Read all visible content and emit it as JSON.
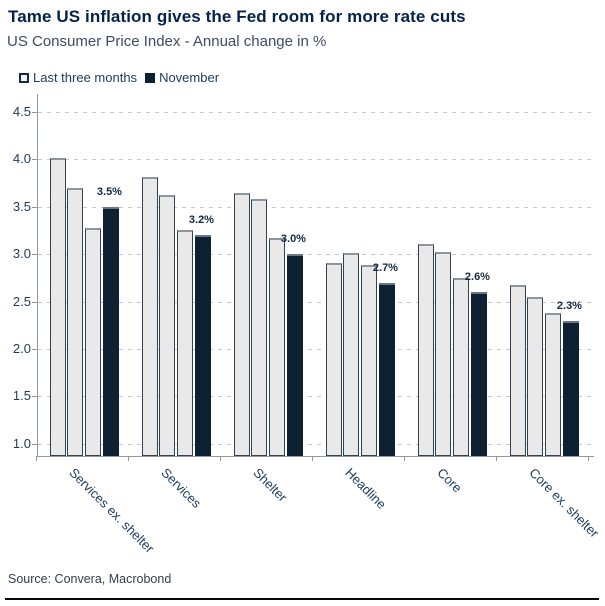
{
  "header": {
    "title": "Tame US inflation gives the Fed room for more rate cuts",
    "subtitle": "US Consumer Price Index - Annual change in %"
  },
  "legend": {
    "items": [
      {
        "label": "Last three months",
        "swatch": "outline-square"
      },
      {
        "label": "November",
        "swatch": "filled-square"
      }
    ]
  },
  "footer": {
    "source": "Source: Convera, Macrobond"
  },
  "colors": {
    "title_text": "#04224a",
    "body_text": "#1d3b58",
    "dark_bar": "#0d2132",
    "light_bar_fill": "#e9e9e9",
    "bar_border": "#2f4357",
    "gridline": "#c9c9c9",
    "axis": "#8e99a3",
    "bottom_rule": "#05080c"
  },
  "chart_data": {
    "type": "bar",
    "title": "Tame US inflation gives the Fed room for more rate cuts",
    "subtitle": "US Consumer Price Index - Annual change in %",
    "categories": [
      "Services ex. shelter",
      "Services",
      "Shelter",
      "Headline",
      "Core",
      "Core ex. shelter"
    ],
    "series": [
      {
        "name": "Last three months",
        "role": "light",
        "values": [
          [
            4.01,
            3.7,
            3.28
          ],
          [
            3.81,
            3.62,
            3.26
          ],
          [
            3.65,
            3.58,
            3.17
          ],
          [
            2.91,
            3.01,
            2.89
          ],
          [
            3.11,
            3.02,
            2.75
          ],
          [
            2.67,
            2.55,
            2.38
          ]
        ]
      },
      {
        "name": "November",
        "role": "dark",
        "values": [
          3.5,
          3.2,
          3.0,
          2.7,
          2.6,
          2.3
        ],
        "labels": [
          "3.5%",
          "3.2%",
          "3.0%",
          "2.7%",
          "2.6%",
          "2.3%"
        ]
      }
    ],
    "ylabel": "Annual change in %",
    "yticks": [
      1.0,
      1.5,
      2.0,
      2.5,
      3.0,
      3.5,
      4.0,
      4.5
    ],
    "ylim": [
      0.87,
      4.65
    ],
    "grid": "horizontal-dashed",
    "legend_position": "top-left",
    "xlabel_rotation": 45
  }
}
